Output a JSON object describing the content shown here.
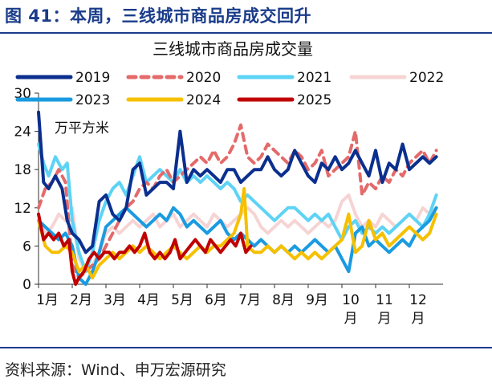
{
  "header": {
    "title": "图 41：本周，三线城市商品房成交回升"
  },
  "footer": {
    "source": "资料来源：Wind、申万宏源研究"
  },
  "colors": {
    "2019": "#0b2f8f",
    "2020": "#e46a6a",
    "2021": "#5dd3f5",
    "2022": "#f6d4d4",
    "2023": "#1a9be0",
    "2024": "#f6c000",
    "2025": "#c00000"
  },
  "chart_data": {
    "type": "line",
    "title": "三线城市商品房成交量",
    "unit": "万平方米",
    "ylim": [
      0,
      30
    ],
    "yticks": [
      "0",
      "6",
      "12",
      "18",
      "24",
      "30"
    ],
    "xticks": [
      "1月",
      "2月",
      "3月",
      "4月",
      "5月",
      "6月",
      "7月",
      "8月",
      "9月",
      "10\n月",
      "11\n月",
      "12\n月"
    ],
    "x_range": [
      1,
      13
    ],
    "legend": [
      "2019",
      "2020",
      "2021",
      "2022",
      "2023",
      "2024",
      "2025"
    ],
    "series": [
      {
        "name": "2019",
        "style": "solid",
        "x": [
          1.0,
          1.15,
          1.3,
          1.5,
          1.7,
          1.85,
          2.0,
          2.2,
          2.4,
          2.6,
          2.8,
          3.0,
          3.2,
          3.4,
          3.6,
          3.8,
          4.0,
          4.2,
          4.4,
          4.6,
          4.8,
          5.0,
          5.2,
          5.4,
          5.6,
          5.8,
          6.0,
          6.2,
          6.4,
          6.6,
          6.8,
          7.0,
          7.2,
          7.4,
          7.6,
          7.8,
          8.0,
          8.2,
          8.4,
          8.6,
          8.8,
          9.0,
          9.2,
          9.4,
          9.6,
          9.8,
          10.0,
          10.2,
          10.4,
          10.6,
          10.8,
          11.0,
          11.2,
          11.4,
          11.6,
          11.8,
          12.0,
          12.2,
          12.4,
          12.6,
          12.8
        ],
        "y": [
          27,
          16,
          15,
          17,
          15,
          10,
          8,
          7,
          5,
          6,
          13,
          14,
          11,
          10,
          12,
          18,
          19,
          14,
          15,
          16,
          16,
          15,
          24,
          16,
          18,
          17,
          18,
          17,
          16,
          18,
          18,
          16,
          17,
          18,
          18,
          20,
          18,
          17,
          18,
          21,
          19,
          17,
          16,
          19,
          18,
          20,
          18,
          19,
          21,
          19,
          17,
          21,
          16,
          19,
          18,
          22,
          18,
          19,
          20,
          19,
          20
        ]
      },
      {
        "name": "2020",
        "style": "dash",
        "x": [
          1.0,
          1.2,
          1.4,
          1.6,
          1.8,
          2.0,
          2.2,
          2.4,
          2.6,
          2.8,
          3.0,
          3.2,
          3.4,
          3.6,
          3.8,
          4.0,
          4.2,
          4.4,
          4.6,
          4.8,
          5.0,
          5.2,
          5.4,
          5.6,
          5.8,
          6.0,
          6.2,
          6.4,
          6.6,
          6.8,
          7.0,
          7.2,
          7.4,
          7.6,
          7.8,
          8.0,
          8.2,
          8.4,
          8.6,
          8.8,
          9.0,
          9.2,
          9.4,
          9.6,
          9.8,
          10.0,
          10.2,
          10.4,
          10.6,
          10.8,
          11.0,
          11.2,
          11.4,
          11.6,
          11.8,
          12.0,
          12.2,
          12.4,
          12.6,
          12.8
        ],
        "y": [
          12,
          15,
          16,
          18,
          16,
          3,
          1,
          2,
          3,
          4,
          6,
          8,
          10,
          12,
          13,
          15,
          16,
          15,
          17,
          18,
          16,
          17,
          18,
          19,
          20,
          19,
          21,
          19,
          20,
          22,
          25,
          20,
          19,
          20,
          22,
          21,
          20,
          19,
          21,
          20,
          18,
          19,
          21,
          17,
          18,
          19,
          20,
          24,
          14,
          16,
          15,
          17,
          16,
          18,
          17,
          19,
          20,
          21,
          19,
          21
        ]
      },
      {
        "name": "2021",
        "style": "solid",
        "x": [
          1.0,
          1.15,
          1.3,
          1.5,
          1.7,
          1.85,
          2.0,
          2.2,
          2.4,
          2.6,
          2.8,
          3.0,
          3.2,
          3.4,
          3.6,
          3.8,
          4.0,
          4.2,
          4.4,
          4.6,
          4.8,
          5.0,
          5.2,
          5.4,
          5.6,
          5.8,
          6.0,
          6.2,
          6.4,
          6.6,
          6.8,
          7.0,
          7.2,
          7.4,
          7.6,
          7.8,
          8.0,
          8.2,
          8.4,
          8.6,
          8.8,
          9.0,
          9.2,
          9.4,
          9.6,
          9.8,
          10.0,
          10.2,
          10.4,
          10.6,
          10.8,
          11.0,
          11.2,
          11.4,
          11.6,
          11.8,
          12.0,
          12.2,
          12.4,
          12.6,
          12.8
        ],
        "y": [
          22,
          19,
          17,
          20,
          18,
          19,
          10,
          5,
          2,
          5,
          10,
          13,
          15,
          16,
          14,
          17,
          20,
          16,
          17,
          18,
          17,
          16,
          18,
          16,
          17,
          16,
          17,
          16,
          15,
          16,
          15,
          13,
          14,
          13,
          12,
          11,
          10,
          11,
          12,
          12,
          11,
          10,
          11,
          10,
          11,
          9,
          7,
          9,
          10,
          8,
          9,
          8,
          9,
          8,
          9,
          10,
          11,
          10,
          9,
          11,
          14
        ]
      },
      {
        "name": "2022",
        "style": "solid",
        "x": [
          1.0,
          1.2,
          1.4,
          1.6,
          1.8,
          2.0,
          2.2,
          2.4,
          2.6,
          2.8,
          3.0,
          3.2,
          3.4,
          3.6,
          3.8,
          4.0,
          4.2,
          4.4,
          4.6,
          4.8,
          5.0,
          5.2,
          5.4,
          5.6,
          5.8,
          6.0,
          6.2,
          6.4,
          6.6,
          6.8,
          7.0,
          7.2,
          7.4,
          7.6,
          7.8,
          8.0,
          8.2,
          8.4,
          8.6,
          8.8,
          9.0,
          9.2,
          9.4,
          9.6,
          9.8,
          10.0,
          10.2,
          10.4,
          10.6,
          10.8,
          11.0,
          11.2,
          11.4,
          11.6,
          11.8,
          12.0,
          12.2,
          12.4,
          12.6,
          12.8
        ],
        "y": [
          10,
          8,
          9,
          11,
          10,
          12,
          4,
          2,
          3,
          5,
          8,
          9,
          8,
          9,
          10,
          9,
          10,
          11,
          9,
          10,
          11,
          9,
          10,
          11,
          10,
          9,
          11,
          10,
          9,
          10,
          11,
          12,
          11,
          9,
          8,
          9,
          10,
          9,
          10,
          9,
          8,
          9,
          10,
          9,
          10,
          13,
          14,
          11,
          9,
          10,
          9,
          11,
          10,
          9,
          10,
          11,
          10,
          12,
          11,
          12
        ]
      },
      {
        "name": "2023",
        "style": "solid",
        "x": [
          1.0,
          1.2,
          1.4,
          1.6,
          1.8,
          2.0,
          2.2,
          2.4,
          2.6,
          2.8,
          3.0,
          3.2,
          3.4,
          3.6,
          3.8,
          4.0,
          4.2,
          4.4,
          4.6,
          4.8,
          5.0,
          5.2,
          5.4,
          5.6,
          5.8,
          6.0,
          6.2,
          6.4,
          6.6,
          6.8,
          7.0,
          7.2,
          7.4,
          7.6,
          7.8,
          8.0,
          8.2,
          8.4,
          8.6,
          8.8,
          9.0,
          9.2,
          9.4,
          9.6,
          9.8,
          10.0,
          10.2,
          10.4,
          10.6,
          10.8,
          11.0,
          11.2,
          11.4,
          11.6,
          11.8,
          12.0,
          12.2,
          12.4,
          12.6,
          12.8
        ],
        "y": [
          10,
          9,
          8,
          7,
          8,
          6,
          1,
          0,
          2,
          5,
          9,
          10,
          11,
          12,
          11,
          10,
          9,
          10,
          11,
          10,
          12,
          11,
          9,
          10,
          9,
          8,
          9,
          10,
          8,
          7,
          8,
          7,
          6,
          7,
          6,
          5,
          6,
          5,
          6,
          5,
          6,
          7,
          6,
          5,
          6,
          4,
          2,
          8,
          9,
          6,
          7,
          6,
          5,
          6,
          7,
          6,
          8,
          9,
          10,
          12
        ]
      },
      {
        "name": "2024",
        "style": "solid",
        "x": [
          1.0,
          1.2,
          1.4,
          1.6,
          1.8,
          2.0,
          2.2,
          2.4,
          2.6,
          2.8,
          3.0,
          3.2,
          3.4,
          3.6,
          3.8,
          4.0,
          4.2,
          4.4,
          4.6,
          4.8,
          5.0,
          5.2,
          5.4,
          5.6,
          5.8,
          6.0,
          6.2,
          6.4,
          6.6,
          6.8,
          7.0,
          7.1,
          7.2,
          7.4,
          7.6,
          7.8,
          8.0,
          8.2,
          8.4,
          8.6,
          8.8,
          9.0,
          9.2,
          9.4,
          9.6,
          9.8,
          10.0,
          10.2,
          10.4,
          10.6,
          10.8,
          11.0,
          11.2,
          11.4,
          11.6,
          11.8,
          12.0,
          12.2,
          12.4,
          12.6,
          12.8
        ],
        "y": [
          10,
          6,
          5,
          5,
          6,
          5,
          2,
          3,
          1,
          3,
          4,
          5,
          4,
          5,
          6,
          5,
          6,
          5,
          4,
          5,
          6,
          5,
          4,
          5,
          6,
          5,
          6,
          6,
          7,
          8,
          11,
          15,
          6,
          5,
          5,
          6,
          5,
          6,
          5,
          4,
          5,
          4,
          5,
          4,
          5,
          6,
          7,
          11,
          5,
          6,
          10,
          7,
          8,
          6,
          7,
          8,
          9,
          8,
          7,
          8,
          11
        ]
      },
      {
        "name": "2025",
        "style": "solid",
        "x": [
          1.0,
          1.15,
          1.3,
          1.45,
          1.6,
          1.75,
          1.9,
          2.0,
          2.1,
          2.2,
          2.35,
          2.5,
          2.65,
          2.8,
          2.95,
          3.1,
          3.25,
          3.4,
          3.55,
          3.7,
          3.85,
          4.0,
          4.15,
          4.3,
          4.45,
          4.6,
          4.75,
          4.9,
          5.05,
          5.2,
          5.35,
          5.5,
          5.65,
          5.8,
          5.95,
          6.1,
          6.25,
          6.4,
          6.55,
          6.7,
          6.85,
          7.0,
          7.15,
          7.3
        ],
        "y": [
          11,
          7,
          8,
          7,
          8,
          6,
          7,
          2,
          0,
          1,
          2,
          4,
          5,
          4,
          5,
          5,
          4,
          5,
          5,
          6,
          5,
          6,
          8,
          5,
          4,
          5,
          4,
          5,
          7,
          4,
          5,
          6,
          7,
          6,
          5,
          7,
          6,
          5,
          6,
          7,
          6,
          8,
          5,
          6
        ]
      }
    ]
  }
}
